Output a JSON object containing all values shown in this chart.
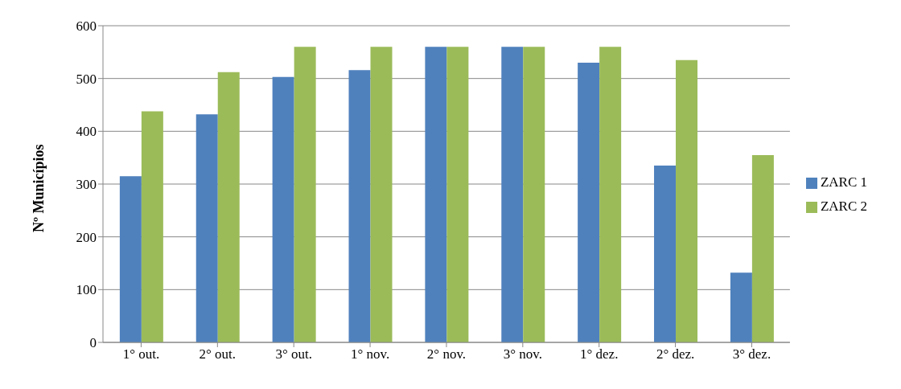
{
  "chart_data": {
    "type": "bar",
    "ylabel": "Nº Municípios",
    "categories": [
      "1° out.",
      "2° out.",
      "3° out.",
      "1° nov.",
      "2° nov.",
      "3° nov.",
      "1° dez.",
      "2° dez.",
      "3° dez."
    ],
    "series": [
      {
        "name": "ZARC 1",
        "color": "#4f81bd",
        "values": [
          315,
          432,
          503,
          516,
          560,
          560,
          530,
          335,
          132
        ]
      },
      {
        "name": "ZARC 2",
        "color": "#9bbb59",
        "values": [
          438,
          512,
          560,
          560,
          560,
          560,
          560,
          535,
          355
        ]
      }
    ],
    "ylim": [
      0,
      600
    ],
    "yticks": [
      0,
      100,
      200,
      300,
      400,
      500,
      600
    ],
    "grid": "y",
    "legend": "right"
  }
}
